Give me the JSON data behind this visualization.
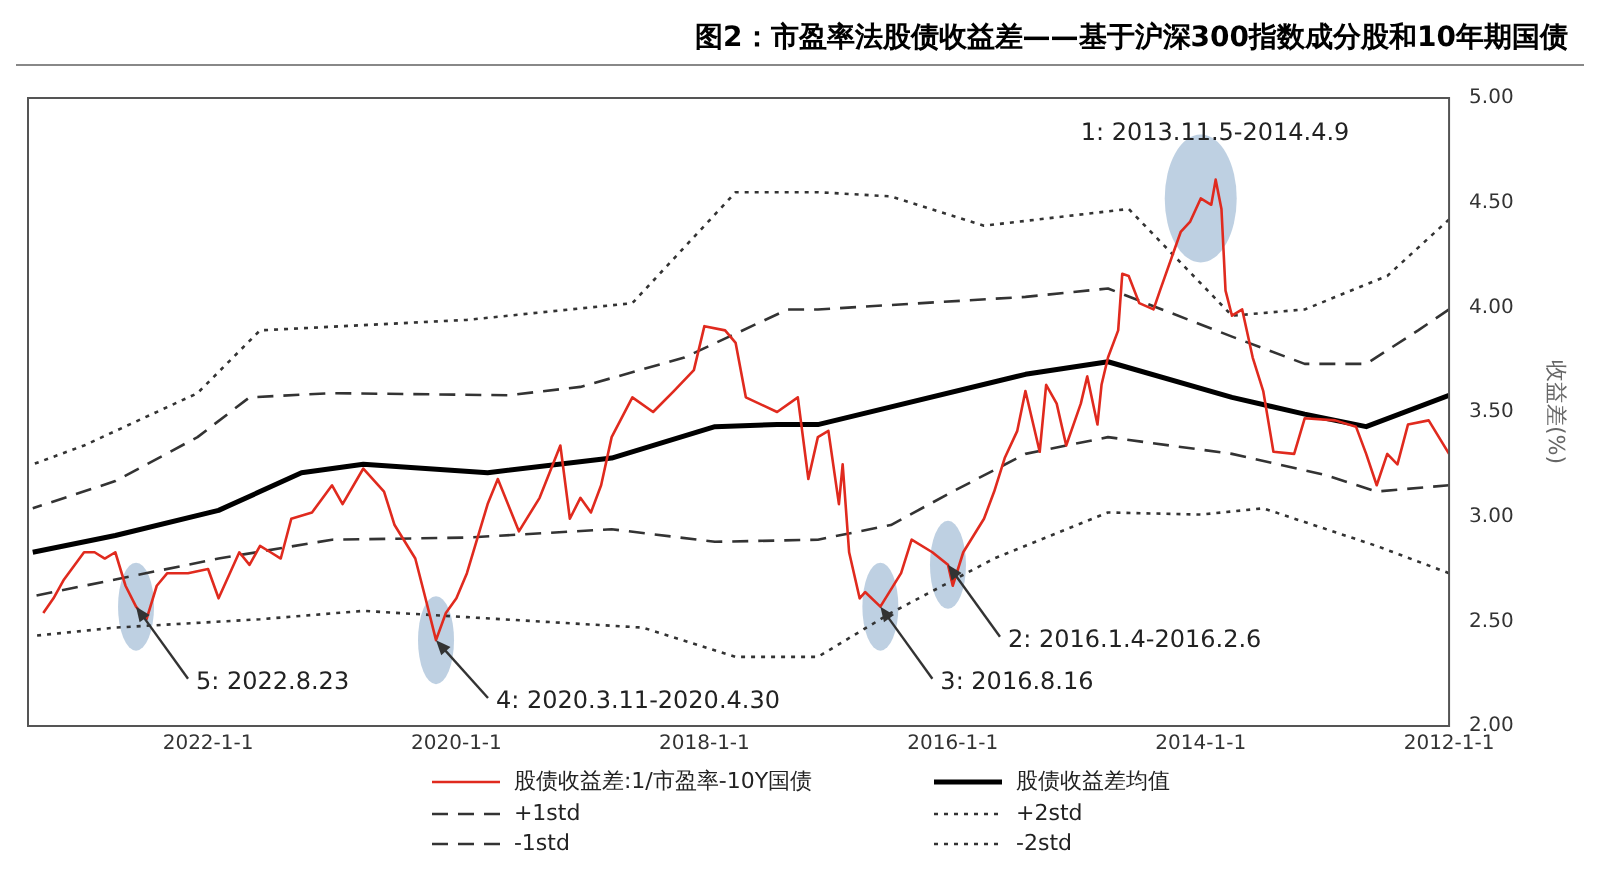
{
  "chart_data": {
    "type": "line",
    "title": "图2：市盈率法股债收益差——基于沪深300指数成分股和10年期国债",
    "ylabel": "收益差(%)",
    "xlim": [
      "2023-06-15",
      "2012-01-01"
    ],
    "xticks": [
      {
        "value": "2012-01-01",
        "label": "2012-1-1"
      },
      {
        "value": "2014-01-01",
        "label": "2014-1-1"
      },
      {
        "value": "2016-01-01",
        "label": "2016-1-1"
      },
      {
        "value": "2018-01-01",
        "label": "2018-1-1"
      },
      {
        "value": "2020-01-01",
        "label": "2020-1-1"
      },
      {
        "value": "2022-01-01",
        "label": "2022-1-1"
      }
    ],
    "ylim": [
      2,
      5
    ],
    "yticks": [
      {
        "value": 2,
        "label": "2.00"
      },
      {
        "value": 2.5,
        "label": "2.50"
      },
      {
        "value": 3,
        "label": "3.00"
      },
      {
        "value": 3.5,
        "label": "3.50"
      },
      {
        "value": 4,
        "label": "4.00"
      },
      {
        "value": 4.5,
        "label": "4.50"
      },
      {
        "value": 5,
        "label": "5.00"
      }
    ],
    "grid": false,
    "legend": "bottom",
    "marker": "none",
    "series": [
      {
        "name": "股债收益差:1/市盈率-10Y国债",
        "color": "#e02a1e",
        "line_style": "solid",
        "x": [
          "2012-01",
          "2012-03",
          "2012-05",
          "2012-06",
          "2012-07",
          "2012-08",
          "2012-09",
          "2012-10",
          "2012-12",
          "2013-03",
          "2013-04",
          "2013-06",
          "2013-07",
          "2013-08",
          "2013-09",
          "2013-10",
          "2013-10-20",
          "2013-11",
          "2013-11-18",
          "2013-12",
          "2014-01",
          "2014-02",
          "2014-03",
          "2014-05",
          "2014-05-20",
          "2014-07",
          "2014-08",
          "2014-08-20",
          "2014-09",
          "2014-10",
          "2014-10-20",
          "2014-11",
          "2014-12",
          "2014-12-20",
          "2015-02",
          "2015-03",
          "2015-04",
          "2015-04-20",
          "2015-06",
          "2015-06-25",
          "2015-08",
          "2015-09",
          "2015-10",
          "2015-12",
          "2016-01",
          "2016-01-15",
          "2016-03",
          "2016-05",
          "2016-06",
          "2016-08",
          "2016-09-15",
          "2016-10",
          "2016-11",
          "2016-11-20",
          "2016-12",
          "2017-01",
          "2017-02",
          "2017-03",
          "2017-04",
          "2017-06",
          "2017-09",
          "2017-10",
          "2017-11",
          "2018-01",
          "2018-02",
          "2018-04",
          "2018-06",
          "2018-08",
          "2018-10",
          "2018-11",
          "2018-12",
          "2019-01",
          "2019-02",
          "2019-03",
          "2019-05",
          "2019-07",
          "2019-09",
          "2019-10",
          "2019-12",
          "2020-01",
          "2020-02",
          "2020-03",
          "2020-04",
          "2020-05",
          "2020-07",
          "2020-08",
          "2020-10",
          "2020-12",
          "2021-01",
          "2021-03",
          "2021-05",
          "2021-06",
          "2021-07",
          "2021-08",
          "2021-09",
          "2021-10",
          "2021-12",
          "2022-01",
          "2022-03",
          "2022-05",
          "2022-06",
          "2022-07",
          "2022-08",
          "2022-09",
          "2022-10",
          "2022-11",
          "2022-12",
          "2023-01",
          "2023-03",
          "2023-04",
          "2023-05"
        ],
        "values": [
          3.3,
          3.46,
          3.44,
          3.25,
          3.3,
          3.15,
          3.3,
          3.43,
          3.46,
          3.47,
          3.3,
          3.31,
          3.6,
          3.76,
          3.99,
          3.96,
          4.08,
          4.47,
          4.61,
          4.49,
          4.52,
          4.41,
          4.36,
          4.08,
          3.99,
          4.02,
          4.15,
          4.16,
          3.89,
          3.76,
          3.63,
          3.44,
          3.67,
          3.54,
          3.34,
          3.54,
          3.63,
          3.31,
          3.6,
          3.41,
          3.28,
          3.12,
          2.99,
          2.83,
          2.67,
          2.77,
          2.83,
          2.89,
          2.73,
          2.57,
          2.64,
          2.61,
          2.83,
          3.25,
          3.06,
          3.41,
          3.38,
          3.18,
          3.57,
          3.5,
          3.57,
          3.83,
          3.89,
          3.91,
          3.7,
          3.6,
          3.5,
          3.57,
          3.38,
          3.15,
          3.02,
          3.09,
          2.99,
          3.34,
          3.09,
          2.93,
          3.18,
          3.06,
          2.73,
          2.61,
          2.54,
          2.41,
          2.61,
          2.8,
          2.96,
          3.12,
          3.23,
          3.06,
          3.15,
          3.02,
          2.99,
          2.8,
          2.83,
          2.86,
          2.77,
          2.83,
          2.61,
          2.75,
          2.73,
          2.73,
          2.67,
          2.51,
          2.57,
          2.67,
          2.83,
          2.8,
          2.83,
          2.83,
          2.7,
          2.61,
          2.54
        ]
      },
      {
        "name": "股债收益差均值",
        "color": "#000000",
        "line_style": "solid",
        "x": [
          "2012-01",
          "2012-09",
          "2013-03",
          "2013-10",
          "2014-10",
          "2015-06",
          "2017-02",
          "2017-06",
          "2017-12",
          "2018-10",
          "2019-10",
          "2020-10",
          "2021-04",
          "2021-12",
          "2022-10",
          "2023-06"
        ],
        "values": [
          3.58,
          3.43,
          3.49,
          3.57,
          3.74,
          3.68,
          3.44,
          3.44,
          3.43,
          3.28,
          3.21,
          3.25,
          3.21,
          3.03,
          2.91,
          2.83
        ]
      },
      {
        "name": "+1std",
        "color": "#333333",
        "line_style": "dashed",
        "x": [
          "2012-01",
          "2012-04",
          "2012-09",
          "2013-03",
          "2013-10",
          "2014-10",
          "2015-06",
          "2017-02",
          "2017-05",
          "2018-03",
          "2019-01",
          "2019-08",
          "2021-01",
          "2021-09",
          "2022-02",
          "2022-10",
          "2023-06"
        ],
        "values": [
          3.99,
          3.89,
          3.73,
          3.73,
          3.86,
          4.09,
          4.05,
          3.99,
          3.99,
          3.76,
          3.62,
          3.58,
          3.59,
          3.57,
          3.38,
          3.17,
          3.04
        ]
      },
      {
        "name": "+2std",
        "color": "#333333",
        "line_style": "dotted",
        "x": [
          "2012-01",
          "2012-07",
          "2013-03",
          "2013-10",
          "2014-08",
          "2015-10",
          "2016-07",
          "2017-02",
          "2017-10",
          "2018-08",
          "2019-12",
          "2021-08",
          "2022-02",
          "2023-01",
          "2023-06"
        ],
        "values": [
          4.42,
          4.15,
          3.99,
          3.96,
          4.47,
          4.39,
          4.53,
          4.55,
          4.55,
          4.02,
          3.94,
          3.89,
          3.59,
          3.34,
          3.25
        ]
      },
      {
        "name": "-1std",
        "color": "#333333",
        "line_style": "dashed",
        "x": [
          "2012-01",
          "2012-08",
          "2013-01",
          "2013-10",
          "2014-10",
          "2015-06",
          "2016-01",
          "2016-07",
          "2017-02",
          "2017-12",
          "2018-10",
          "2019-12",
          "2021-01",
          "2021-12",
          "2022-10",
          "2023-06"
        ],
        "values": [
          3.15,
          3.12,
          3.2,
          3.3,
          3.38,
          3.3,
          3.12,
          2.96,
          2.89,
          2.88,
          2.94,
          2.9,
          2.89,
          2.8,
          2.7,
          2.62
        ]
      },
      {
        "name": "-2std",
        "color": "#333333",
        "line_style": "dotted",
        "x": [
          "2012-01",
          "2012-08",
          "2013-07",
          "2014-01",
          "2014-10",
          "2015-09",
          "2016-07",
          "2017-02",
          "2017-10",
          "2018-07",
          "2019-12",
          "2020-10",
          "2021-08",
          "2022-10",
          "2023-06"
        ],
        "values": [
          2.73,
          2.86,
          3.04,
          3.01,
          3.02,
          2.8,
          2.54,
          2.33,
          2.33,
          2.47,
          2.52,
          2.55,
          2.51,
          2.47,
          2.43
        ]
      }
    ],
    "annotations": [
      {
        "text": "1: 2013.11.5-2014.4.9",
        "x": "2014-01",
        "y": 4.52
      },
      {
        "text": "2: 2016.1.4-2016.2.6",
        "x": "2016-01-15",
        "y": 2.77
      },
      {
        "text": "3: 2016.8.16",
        "x": "2016-08",
        "y": 2.57
      },
      {
        "text": "4: 2020.3.11-2020.4.30",
        "x": "2020-03",
        "y": 2.41
      },
      {
        "text": "5: 2022.8.23",
        "x": "2022-08",
        "y": 2.57
      }
    ]
  }
}
